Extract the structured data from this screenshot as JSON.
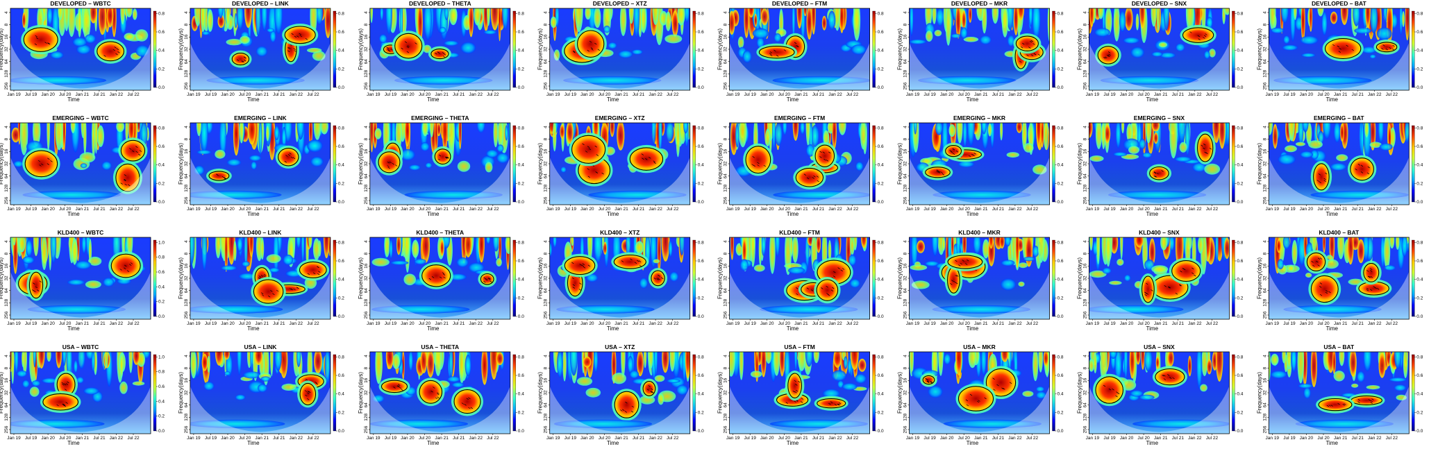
{
  "chart_data": {
    "type": "heatmap",
    "description_axis": {
      "xlabel": "Time",
      "ylabel": "Frequency(days)",
      "x_ticks": [
        "Jan 19",
        "Jul 19",
        "Jan 20",
        "Jul 20",
        "Jan 21",
        "Jul 21",
        "Jan 22",
        "Jul 22"
      ],
      "y_ticks": [
        "4",
        "8",
        "16",
        "32",
        "64",
        "128",
        "256"
      ],
      "colorbar_ticks_default": [
        "0.0",
        "0.2",
        "0.4",
        "0.6",
        "0.8"
      ],
      "colorbar_ticks_extended": [
        "0.0",
        "0.2",
        "0.4",
        "0.6",
        "0.8",
        "1.0"
      ]
    },
    "rows": [
      "DEVELOPED",
      "EMERGING",
      "KLD400",
      "USA"
    ],
    "columns": [
      "WBTC",
      "LINK",
      "THETA",
      "XTZ",
      "FTM",
      "MKR",
      "SNX",
      "BAT"
    ],
    "panels": [
      {
        "title": "DEVELOPED – WBTC",
        "colorbar_max": 0.8
      },
      {
        "title": "DEVELOPED – LINK",
        "colorbar_max": 0.8
      },
      {
        "title": "DEVELOPED – THETA",
        "colorbar_max": 0.8
      },
      {
        "title": "DEVELOPED – XTZ",
        "colorbar_max": 0.8
      },
      {
        "title": "DEVELOPED – FTM",
        "colorbar_max": 0.8
      },
      {
        "title": "DEVELOPED – MKR",
        "colorbar_max": 0.8
      },
      {
        "title": "DEVELOPED – SNX",
        "colorbar_max": 0.8
      },
      {
        "title": "DEVELOPED – BAT",
        "colorbar_max": 0.8
      },
      {
        "title": "EMERGING – WBTC",
        "colorbar_max": 0.8
      },
      {
        "title": "EMERGING – LINK",
        "colorbar_max": 0.8
      },
      {
        "title": "EMERGING – THETA",
        "colorbar_max": 0.8
      },
      {
        "title": "EMERGING – XTZ",
        "colorbar_max": 0.8
      },
      {
        "title": "EMERGING – FTM",
        "colorbar_max": 0.8
      },
      {
        "title": "EMERGING – MKR",
        "colorbar_max": 0.8
      },
      {
        "title": "EMERGING – SNX",
        "colorbar_max": 0.8
      },
      {
        "title": "EMERGING – BAT",
        "colorbar_max": 0.8
      },
      {
        "title": "KLD400 – WBTC",
        "colorbar_max": 1.0
      },
      {
        "title": "KLD400 – LINK",
        "colorbar_max": 0.8
      },
      {
        "title": "KLD400 – THETA",
        "colorbar_max": 0.8
      },
      {
        "title": "KLD400 – XTZ",
        "colorbar_max": 0.8
      },
      {
        "title": "KLD400 – FTM",
        "colorbar_max": 0.8
      },
      {
        "title": "KLD400 – MKR",
        "colorbar_max": 0.8
      },
      {
        "title": "KLD400 – SNX",
        "colorbar_max": 0.8
      },
      {
        "title": "KLD400 – BAT",
        "colorbar_max": 0.8
      },
      {
        "title": "USA – WBTC",
        "colorbar_max": 1.0
      },
      {
        "title": "USA – LINK",
        "colorbar_max": 0.8
      },
      {
        "title": "USA – THETA",
        "colorbar_max": 0.8
      },
      {
        "title": "USA – XTZ",
        "colorbar_max": 0.8
      },
      {
        "title": "USA – FTM",
        "colorbar_max": 0.8
      },
      {
        "title": "USA – MKR",
        "colorbar_max": 0.8
      },
      {
        "title": "USA – SNX",
        "colorbar_max": 0.8
      },
      {
        "title": "USA – BAT",
        "colorbar_max": 0.8
      }
    ],
    "colorscale": [
      "#00007f",
      "#0000ff",
      "#00aaff",
      "#33ffcc",
      "#ccff33",
      "#ffcc00",
      "#ff4400",
      "#9a0000"
    ],
    "grid": false,
    "legend": "colorbar-right"
  }
}
